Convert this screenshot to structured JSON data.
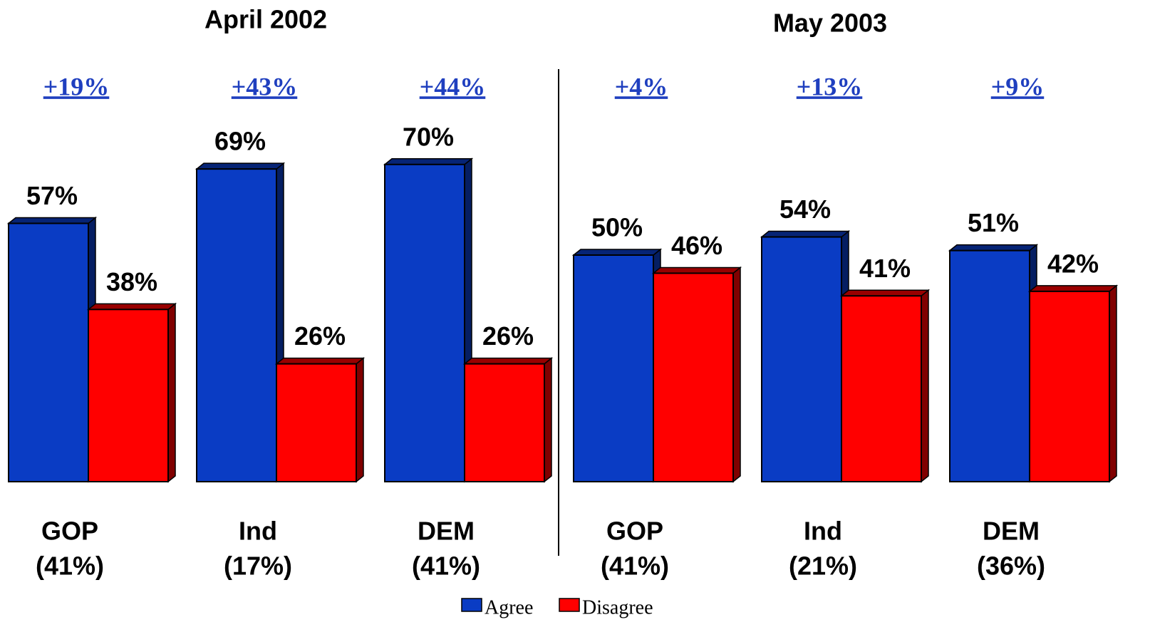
{
  "chart_data": [
    {
      "type": "bar",
      "title": "April 2002",
      "categories": [
        [
          "GOP",
          "(41%)"
        ],
        [
          "Ind",
          "(17%)"
        ],
        [
          "DEM",
          "(41%)"
        ]
      ],
      "annotations": [
        "+19%",
        "+43%",
        "+44%"
      ],
      "series": [
        {
          "name": "Agree",
          "color": "#0a3cc4",
          "values": [
            57,
            69,
            70
          ],
          "value_labels": [
            "57%",
            "69%",
            "70%"
          ]
        },
        {
          "name": "Disagree",
          "color": "#ff0000",
          "values": [
            38,
            26,
            26
          ],
          "value_labels": [
            "38%",
            "26%",
            "26%"
          ]
        }
      ]
    },
    {
      "type": "bar",
      "title": "May 2003",
      "categories": [
        [
          "GOP",
          "(41%)"
        ],
        [
          "Ind",
          "(21%)"
        ],
        [
          "DEM",
          "(36%)"
        ]
      ],
      "annotations": [
        "+4%",
        "+13%",
        "+9%"
      ],
      "series": [
        {
          "name": "Agree",
          "color": "#0a3cc4",
          "values": [
            50,
            54,
            51
          ],
          "value_labels": [
            "50%",
            "54%",
            "51%"
          ]
        },
        {
          "name": "Disagree",
          "color": "#ff0000",
          "values": [
            46,
            41,
            42
          ],
          "value_labels": [
            "46%",
            "41%",
            "42%"
          ]
        }
      ]
    }
  ]
}
